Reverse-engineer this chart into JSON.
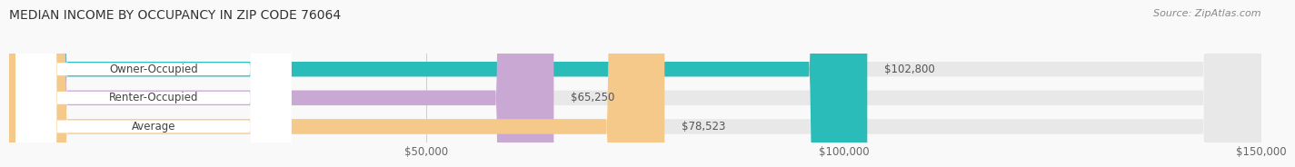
{
  "title": "MEDIAN INCOME BY OCCUPANCY IN ZIP CODE 76064",
  "source": "Source: ZipAtlas.com",
  "categories": [
    "Owner-Occupied",
    "Renter-Occupied",
    "Average"
  ],
  "values": [
    102800,
    65250,
    78523
  ],
  "bar_colors": [
    "#2abcb8",
    "#c9a8d4",
    "#f5c98a"
  ],
  "bar_bg_color": "#e8e8e8",
  "label_values": [
    "$102,800",
    "$65,250",
    "$78,523"
  ],
  "xlim": [
    0,
    150000
  ],
  "xticks": [
    50000,
    100000,
    150000
  ],
  "xtick_labels": [
    "$50,000",
    "$100,000",
    "$150,000"
  ],
  "title_fontsize": 10,
  "source_fontsize": 8,
  "label_fontsize": 8.5,
  "bar_label_fontsize": 8.5,
  "bar_height": 0.52,
  "background_color": "#f9f9f9"
}
